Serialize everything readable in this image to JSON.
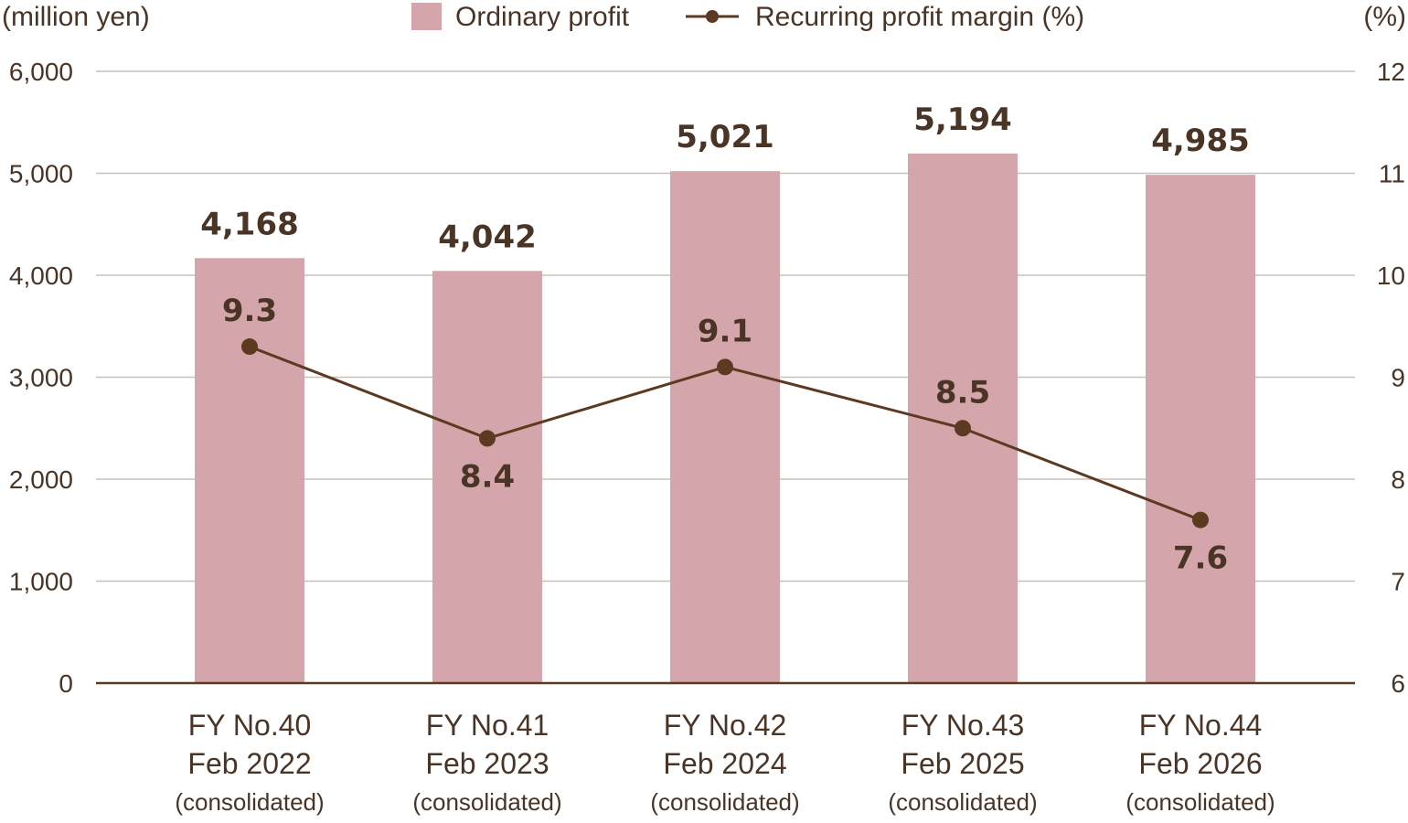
{
  "chart_data": {
    "type": "bar",
    "left_axis_unit": "(million yen)",
    "right_axis_unit": "(%)",
    "categories": [
      {
        "line1": "FY No.40",
        "line2": "Feb 2022",
        "line3": "(consolidated)"
      },
      {
        "line1": "FY No.41",
        "line2": "Feb 2023",
        "line3": "(consolidated)"
      },
      {
        "line1": "FY No.42",
        "line2": "Feb 2024",
        "line3": "(consolidated)"
      },
      {
        "line1": "FY No.43",
        "line2": "Feb 2025",
        "line3": "(consolidated)"
      },
      {
        "line1": "FY No.44",
        "line2": "Feb 2026",
        "line3": "(consolidated)"
      }
    ],
    "series": [
      {
        "name": "Ordinary profit",
        "type": "bar",
        "axis": "left",
        "values": [
          4168,
          4042,
          5021,
          5194,
          4985
        ],
        "labels": [
          "4,168",
          "4,042",
          "5,021",
          "5,194",
          "4,985"
        ],
        "color": "#d4a5aa"
      },
      {
        "name": "Recurring profit margin (%)",
        "type": "line",
        "axis": "right",
        "values": [
          9.3,
          8.4,
          9.1,
          8.5,
          7.6
        ],
        "labels": [
          "9.3",
          "8.4",
          "9.1",
          "8.5",
          "7.6"
        ],
        "label_positions": [
          "above",
          "below",
          "above",
          "above",
          "below"
        ],
        "color": "#5c3a21"
      }
    ],
    "left_axis": {
      "min": 0,
      "max": 6000,
      "ticks": [
        "0",
        "1,000",
        "2,000",
        "3,000",
        "4,000",
        "5,000",
        "6,000"
      ]
    },
    "right_axis": {
      "min": 6,
      "max": 12,
      "ticks": [
        "6",
        "7",
        "8",
        "9",
        "10",
        "11",
        "12"
      ]
    },
    "grid": true,
    "legend_position": "top-center",
    "gridline_color": "#c8c0ba",
    "axis_color": "#5c3a21"
  }
}
